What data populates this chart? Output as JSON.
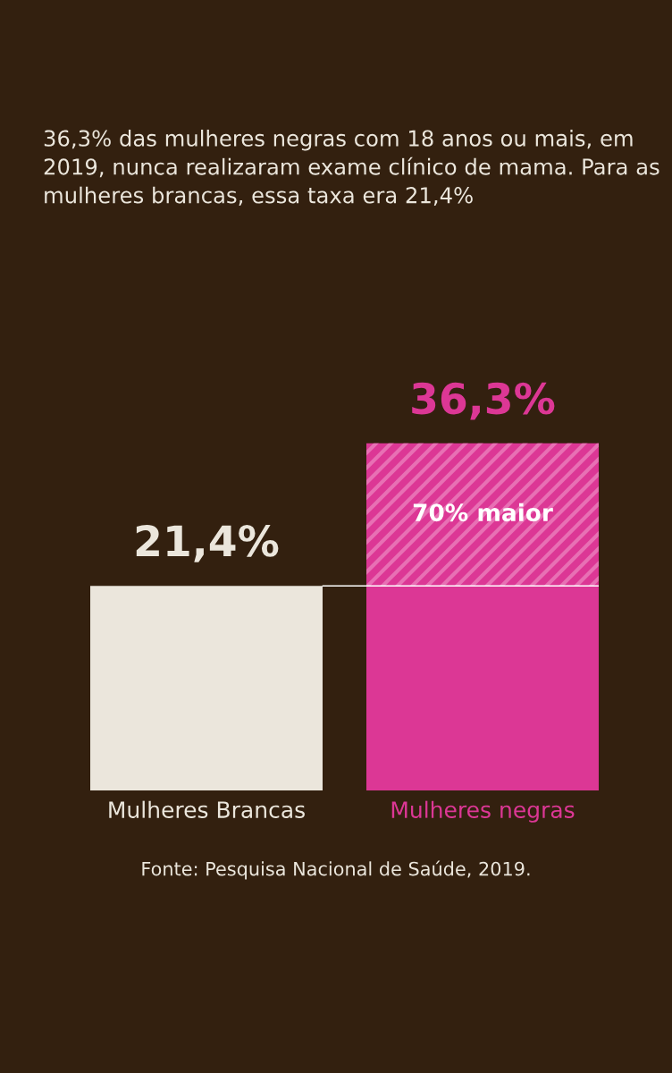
{
  "chart_data": {
    "type": "bar",
    "title": "36,3% das mulheres negras com 18 anos ou mais, em 2019, nunca realizaram exame clínico de mama. Para as mulheres brancas, essa taxa era 21,4%",
    "categories": [
      "Mulheres Brancas",
      "Mulheres negras"
    ],
    "values": [
      21.4,
      36.3
    ],
    "colors": [
      "#ebe6dc",
      "#dc3795"
    ],
    "value_labels": [
      "21,4%",
      "36,3%"
    ],
    "ref_lines": [
      {
        "axis": "y",
        "value": 21.4,
        "label": null,
        "color": "#ffffff"
      }
    ],
    "bands": [
      {
        "axis": "y",
        "from": 21.4,
        "to": 36.3,
        "label": "70% maior",
        "color": "#e870b4"
      }
    ],
    "annotations": [
      "Fonte: Pesquisa Nacional de Saúde, 2019."
    ],
    "legend": false
  }
}
